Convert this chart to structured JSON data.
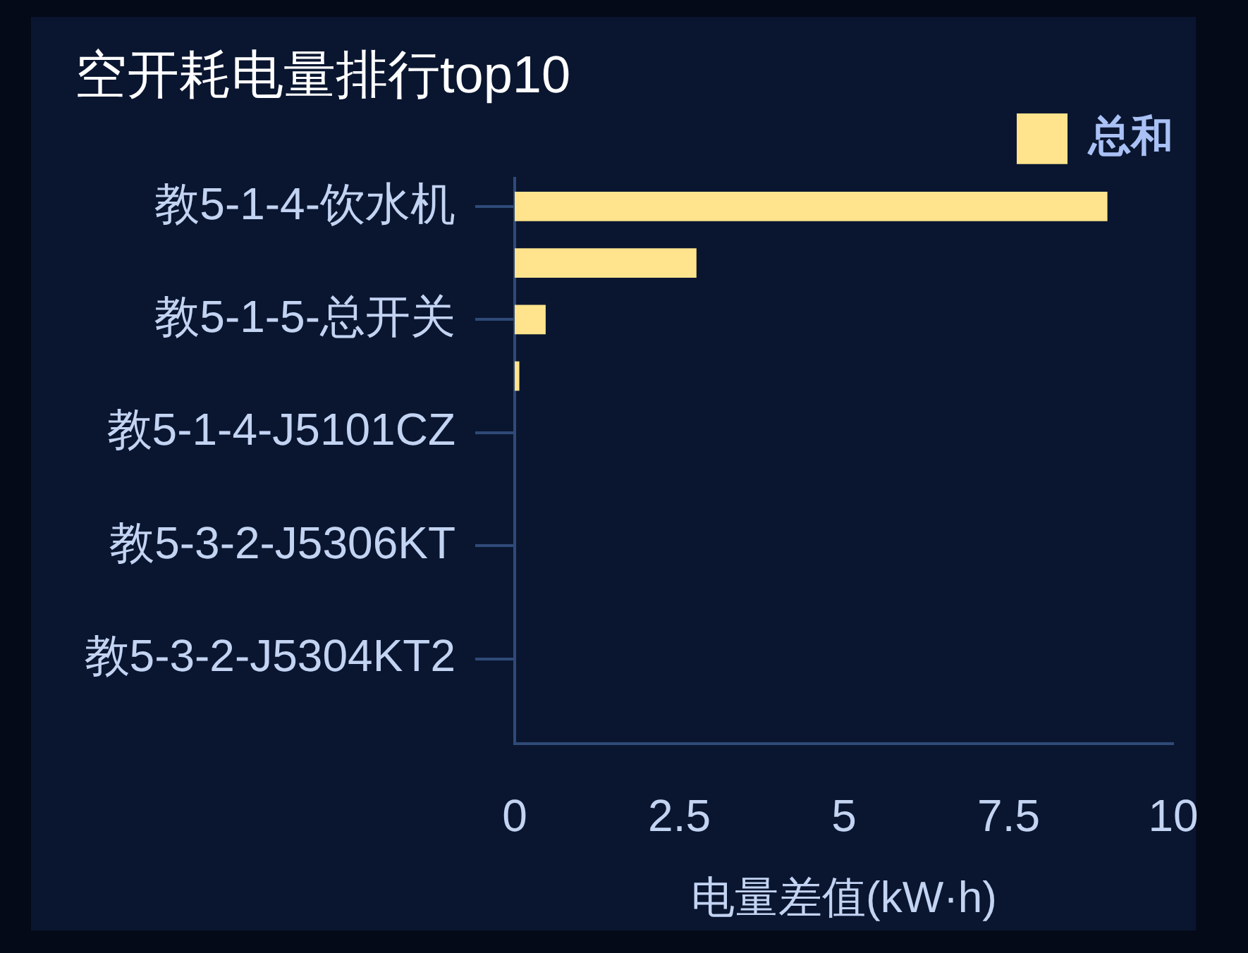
{
  "chart_data": {
    "type": "bar",
    "orientation": "horizontal",
    "title": "空开耗电量排行top10",
    "xlabel": "电量差值(kW·h)",
    "categories": [
      "教5-1-4-饮水机",
      null,
      "教5-1-5-总开关",
      null,
      "教5-1-4-J5101CZ",
      null,
      "教5-3-2-J5306KT",
      null,
      "教5-3-2-J5304KT2",
      null
    ],
    "series": [
      {
        "name": "总和",
        "color": "#ffe48d",
        "values": [
          9,
          2.76,
          0.47,
          0.07,
          0,
          0,
          0,
          0,
          0,
          0
        ]
      }
    ],
    "xlim": [
      0,
      10
    ],
    "xticks": [
      0,
      2.5,
      5,
      7.5,
      10
    ],
    "legend": "top right"
  }
}
